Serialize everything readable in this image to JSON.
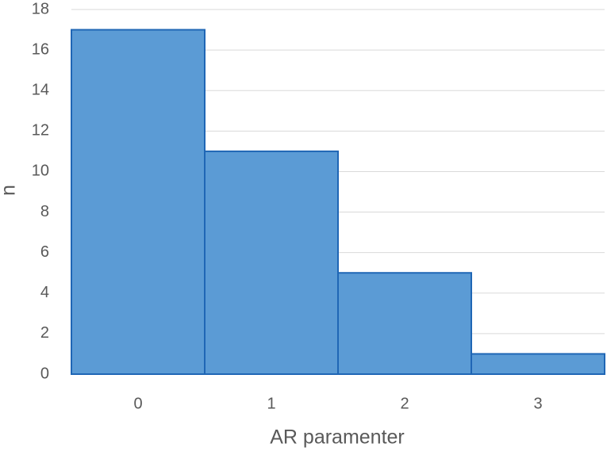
{
  "chart_data": {
    "type": "bar",
    "categories": [
      "0",
      "1",
      "2",
      "3"
    ],
    "values": [
      17,
      11,
      5,
      1
    ],
    "color": "#5b9bd5",
    "edgecolor": "#1f66b5",
    "xlabel": "AR paramenter",
    "ylabel": "n",
    "ylim": [
      0,
      18
    ],
    "yticks": [
      0,
      2,
      4,
      6,
      8,
      10,
      12,
      14,
      16,
      18
    ],
    "grid": true
  }
}
